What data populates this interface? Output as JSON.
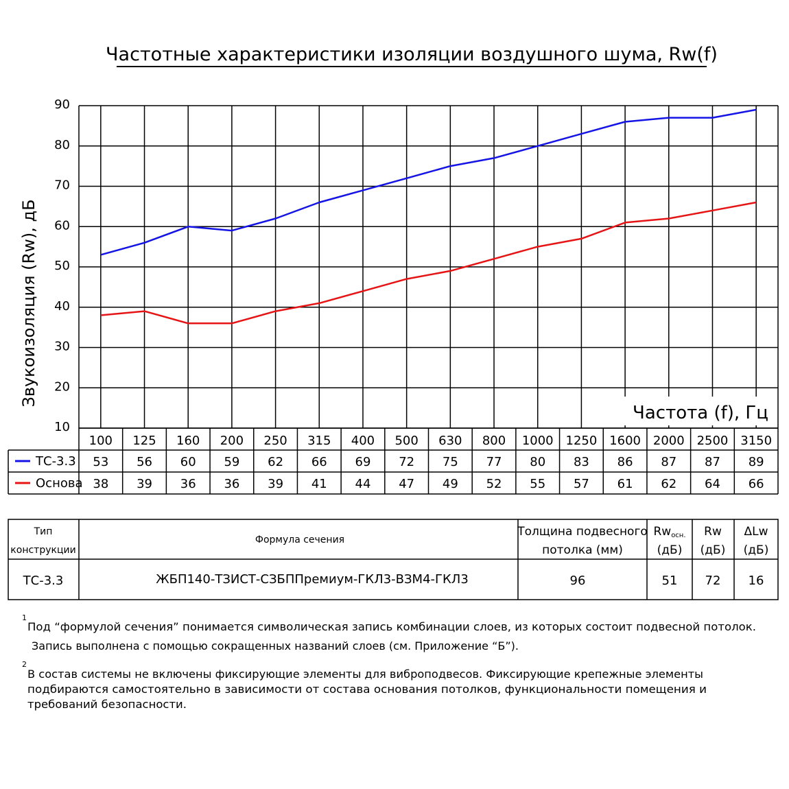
{
  "chart_data": {
    "type": "line",
    "title": "Частотные характеристики изоляции воздушного шума, Rw(f)",
    "ylabel": "Звукоизоляция (Rw), дБ",
    "xlabel": "Частота (f), Гц",
    "categories": [
      "100",
      "125",
      "160",
      "200",
      "250",
      "315",
      "400",
      "500",
      "630",
      "800",
      "1000",
      "1250",
      "1600",
      "2000",
      "2500",
      "3150"
    ],
    "ylim": [
      10,
      90
    ],
    "yticks": [
      "10",
      "20",
      "30",
      "40",
      "50",
      "60",
      "70",
      "80",
      "90"
    ],
    "grid": true,
    "series": [
      {
        "name": "ТС-3.3",
        "color": "#1414e6",
        "values": [
          53,
          56,
          60,
          59,
          62,
          66,
          69,
          72,
          75,
          77,
          80,
          83,
          86,
          87,
          87,
          89
        ]
      },
      {
        "name": "Основа",
        "color": "#e61414",
        "values": [
          38,
          39,
          36,
          36,
          39,
          41,
          44,
          47,
          49,
          52,
          55,
          57,
          61,
          62,
          64,
          66
        ]
      }
    ]
  },
  "spec_table": {
    "headers": {
      "type_line1": "Тип",
      "type_line2": "конструкции",
      "formula": "Формула сечения",
      "thickness_line1": "Толщина подвесного",
      "thickness_line2": "потолка (мм)",
      "rw_base": "Rw",
      "rw_base_sub": "осн.",
      "rw_base_unit": "(дБ)",
      "rw": "Rw",
      "rw_unit": "(дБ)",
      "delta": "ΔLw",
      "delta_unit": "(дБ)"
    },
    "row": {
      "type": "ТС-3.3",
      "formula": "ЖБП140-ТЗИСТ-СЗБППремиум-ГКЛ3-ВЗМ4-ГКЛ3",
      "thickness": "96",
      "rw_base": "51",
      "rw": "72",
      "delta": "16"
    }
  },
  "footnotes": {
    "n1_mark": "1",
    "n1_line1": "Под “формулой сечения” понимается символическая запись комбинации слоев, из которых состоит подвесной потолок.",
    "n1_line2": "Запись выполнена с помощью сокращенных названий слоев (см. Приложение “Б”).",
    "n2_mark": "2",
    "n2_line1": "В состав системы не включены фиксирующие элементы для виброподвесов. Фиксирующие крепежные элементы",
    "n2_line2": "подбираются самостоятельно в зависимости от состава основания потолков, функциональности помещения и",
    "n2_line3": "требований безопасности."
  }
}
